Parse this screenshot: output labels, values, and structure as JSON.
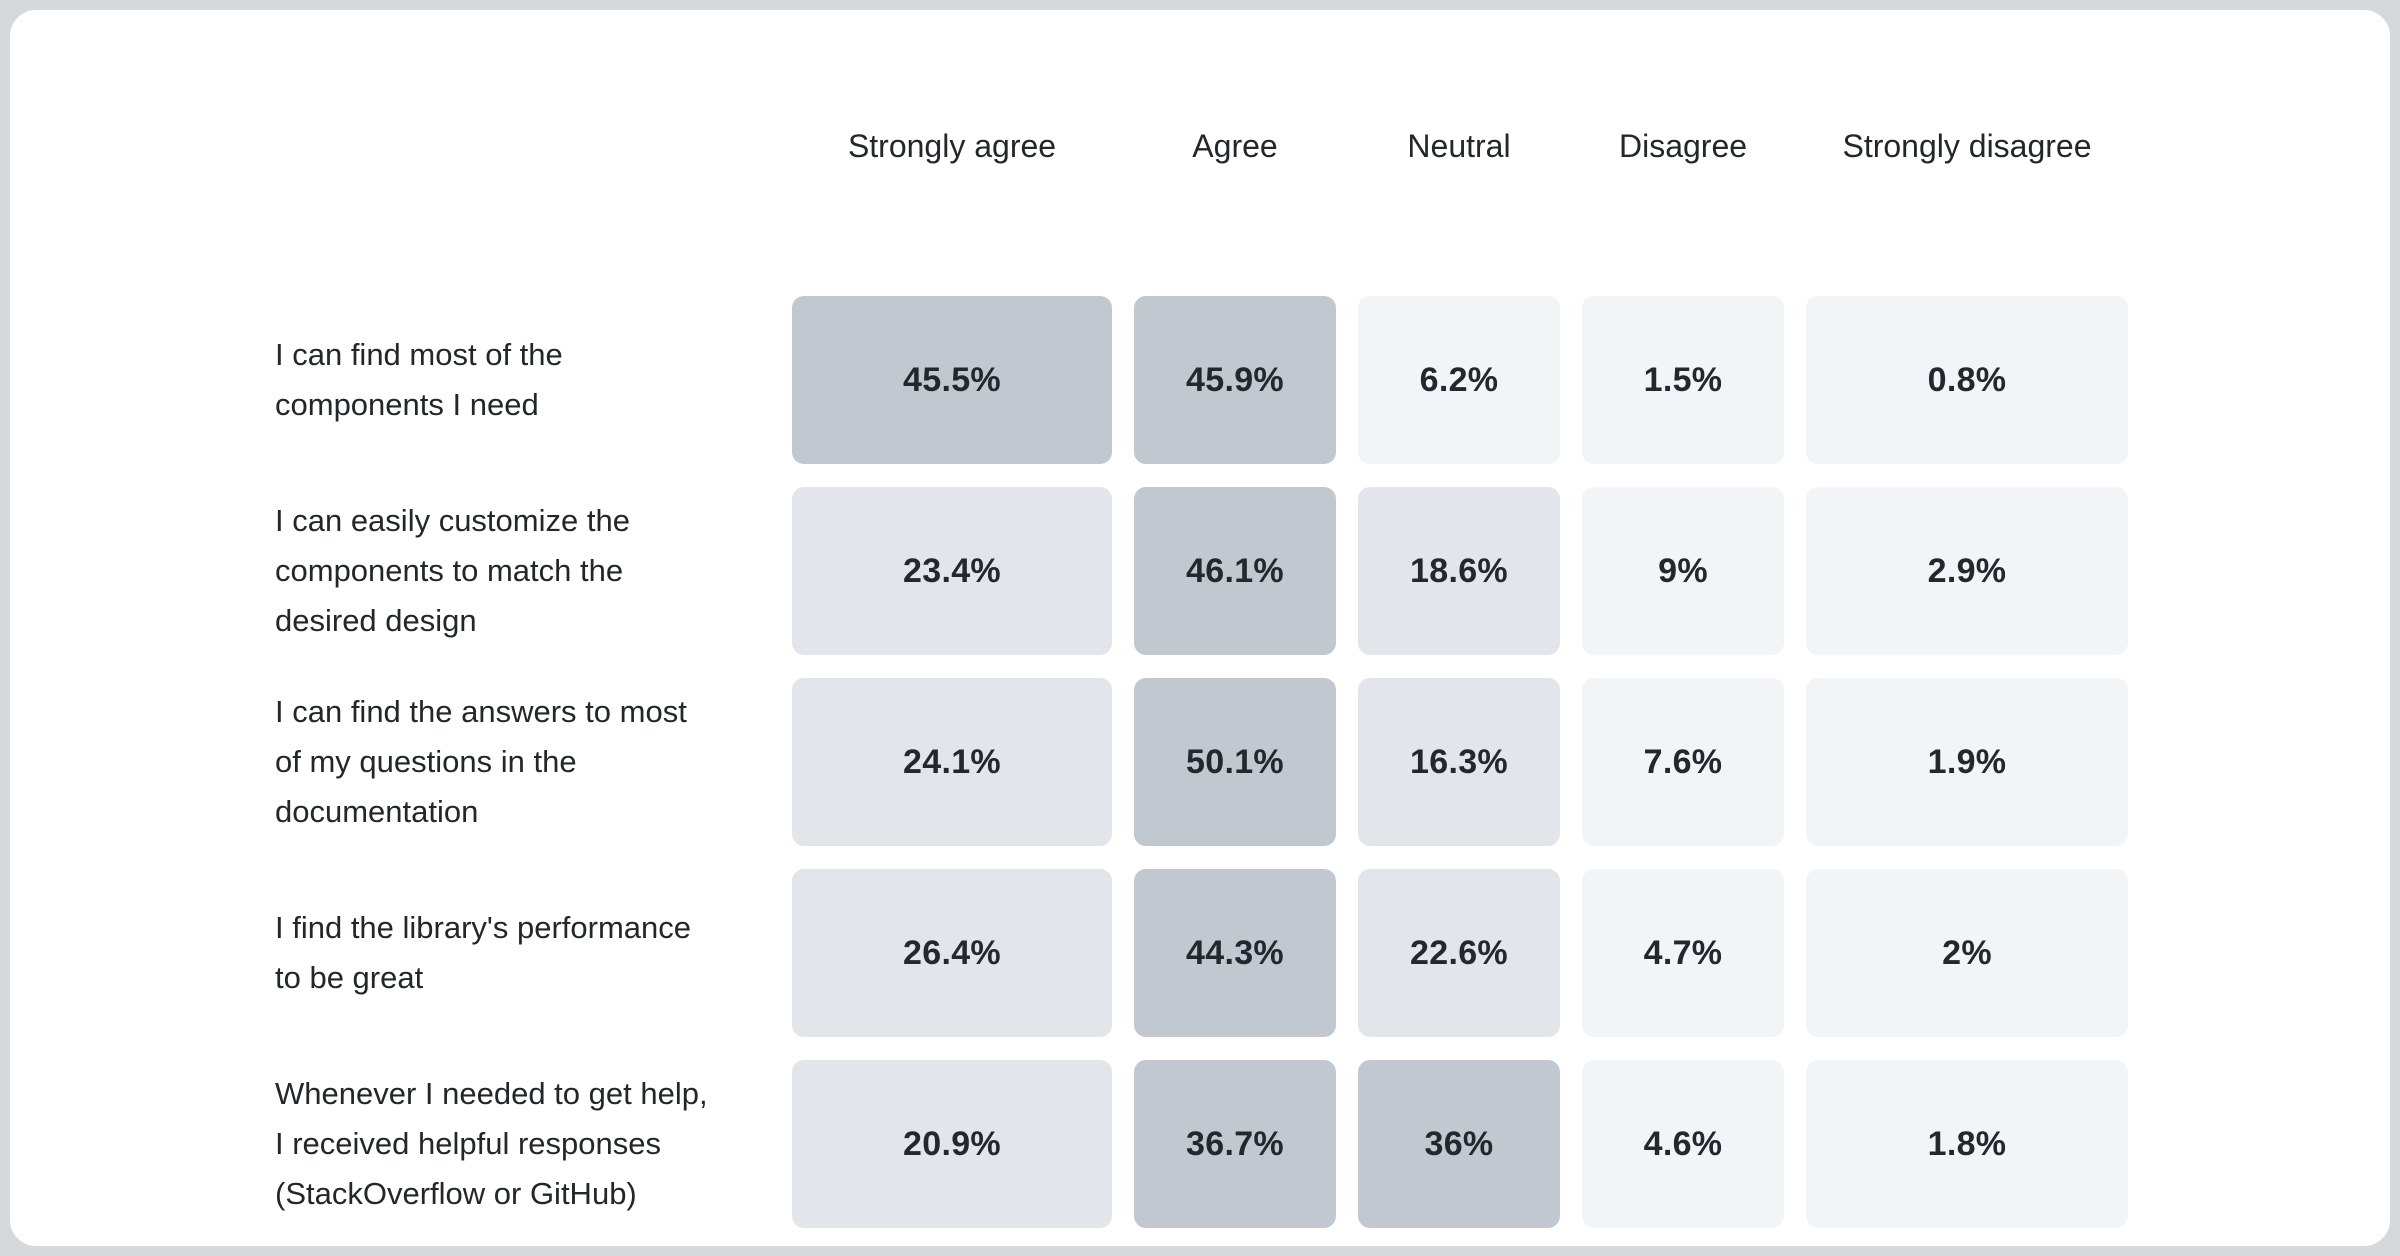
{
  "palette": {
    "page_background": "#d6d9dc",
    "card_background": "#ffffff",
    "text_color": "#21272a",
    "value_text_color": "#23282d",
    "cell_dark": "#c2c8d0",
    "cell_medium": "#e2e6ea",
    "cell_light": "#f2f5f8"
  },
  "shade_thresholds": {
    "dark_min": 30,
    "medium_min": 12
  },
  "chart_data": {
    "type": "heatmap",
    "value_format": "percent",
    "legend_position": "none",
    "grid": false,
    "columns": [
      "Strongly agree",
      "Agree",
      "Neutral",
      "Disagree",
      "Strongly disagree"
    ],
    "rows": [
      {
        "label": "I can find most of the components I need",
        "lines": [
          "I can find most of the",
          "components I need"
        ],
        "values": [
          45.5,
          45.9,
          6.2,
          1.5,
          0.8
        ],
        "display_values": [
          "45.5%",
          "45.9%",
          "6.2%",
          "1.5%",
          "0.8%"
        ]
      },
      {
        "label": "I can easily customize the components to match the desired design",
        "lines": [
          "I can easily customize the",
          "components to match the",
          "desired design"
        ],
        "values": [
          23.4,
          46.1,
          18.6,
          9,
          2.9
        ],
        "display_values": [
          "23.4%",
          "46.1%",
          "18.6%",
          "9%",
          "2.9%"
        ]
      },
      {
        "label": "I can find the answers to most of my questions in the documentation",
        "lines": [
          "I can find the answers to most",
          "of my questions in the",
          "documentation"
        ],
        "values": [
          24.1,
          50.1,
          16.3,
          7.6,
          1.9
        ],
        "display_values": [
          "24.1%",
          "50.1%",
          "16.3%",
          "7.6%",
          "1.9%"
        ]
      },
      {
        "label": "I find the library's performance to be great",
        "lines": [
          "I find the library's performance",
          "to be great"
        ],
        "values": [
          26.4,
          44.3,
          22.6,
          4.7,
          2
        ],
        "display_values": [
          "26.4%",
          "44.3%",
          "22.6%",
          "4.7%",
          "2%"
        ]
      },
      {
        "label": "Whenever I needed to get help, I received helpful responses (StackOverflow or GitHub)",
        "lines": [
          "Whenever I needed to get help,",
          "I received helpful responses",
          "(StackOverflow or GitHub)"
        ],
        "values": [
          20.9,
          36.7,
          36,
          4.6,
          1.8
        ],
        "display_values": [
          "20.9%",
          "36.7%",
          "36%",
          "4.6%",
          "1.8%"
        ]
      }
    ]
  }
}
